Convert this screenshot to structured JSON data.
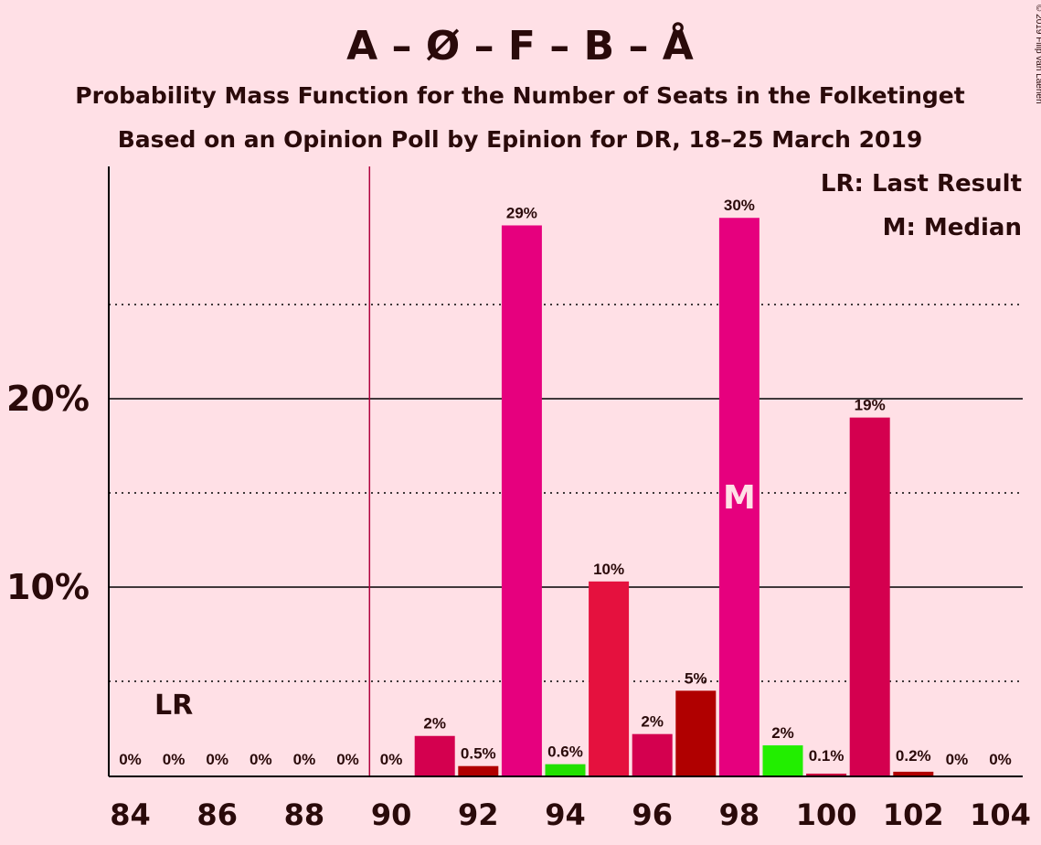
{
  "chart_data": {
    "type": "bar",
    "title": "A – Ø – F – B – Å",
    "subtitle": "Probability Mass Function for the Number of Seats in the Folketinget",
    "subtitle2": "Based on an Opinion Poll by Epinion for DR, 18–25 March 2019",
    "copyright": "© 2019 Filip van Laenen",
    "legend": {
      "lr": "LR: Last Result",
      "m": "M: Median"
    },
    "x": [
      84,
      85,
      86,
      87,
      88,
      89,
      90,
      91,
      92,
      93,
      94,
      95,
      96,
      97,
      98,
      99,
      100,
      101,
      102,
      103,
      104
    ],
    "values": [
      0,
      0,
      0,
      0,
      0,
      0,
      0,
      2.1,
      0.5,
      29.2,
      0.6,
      10.3,
      2.2,
      4.5,
      29.6,
      1.6,
      0.1,
      19.0,
      0.2,
      0,
      0
    ],
    "labels": [
      "0%",
      "0%",
      "0%",
      "0%",
      "0%",
      "0%",
      "0%",
      "2%",
      "0.5%",
      "29%",
      "0.6%",
      "10%",
      "2%",
      "5%",
      "30%",
      "2%",
      "0.1%",
      "19%",
      "0.2%",
      "0%",
      "0%"
    ],
    "colors": [
      "#c8003c",
      "#c8003c",
      "#c8003c",
      "#c8003c",
      "#c8003c",
      "#c8003c",
      "#c8003c",
      "#d4004f",
      "#b00000",
      "#e6007e",
      "#22e000",
      "#e5113e",
      "#d4004f",
      "#b00000",
      "#e6007e",
      "#22ee00",
      "#c8003c",
      "#d4004f",
      "#b00000",
      "#c8003c",
      "#c8003c"
    ],
    "xticks": [
      "84",
      "86",
      "88",
      "90",
      "92",
      "94",
      "96",
      "98",
      "100",
      "102",
      "104"
    ],
    "yticks": [
      "10%",
      "20%"
    ],
    "ylim": [
      0,
      32
    ],
    "last_result_seats": 89.5,
    "last_result_label": "LR",
    "median_seats": 98,
    "median_label": "M",
    "gridlines_solid": [
      10,
      20
    ],
    "gridlines_dotted": [
      5,
      15,
      25
    ]
  }
}
